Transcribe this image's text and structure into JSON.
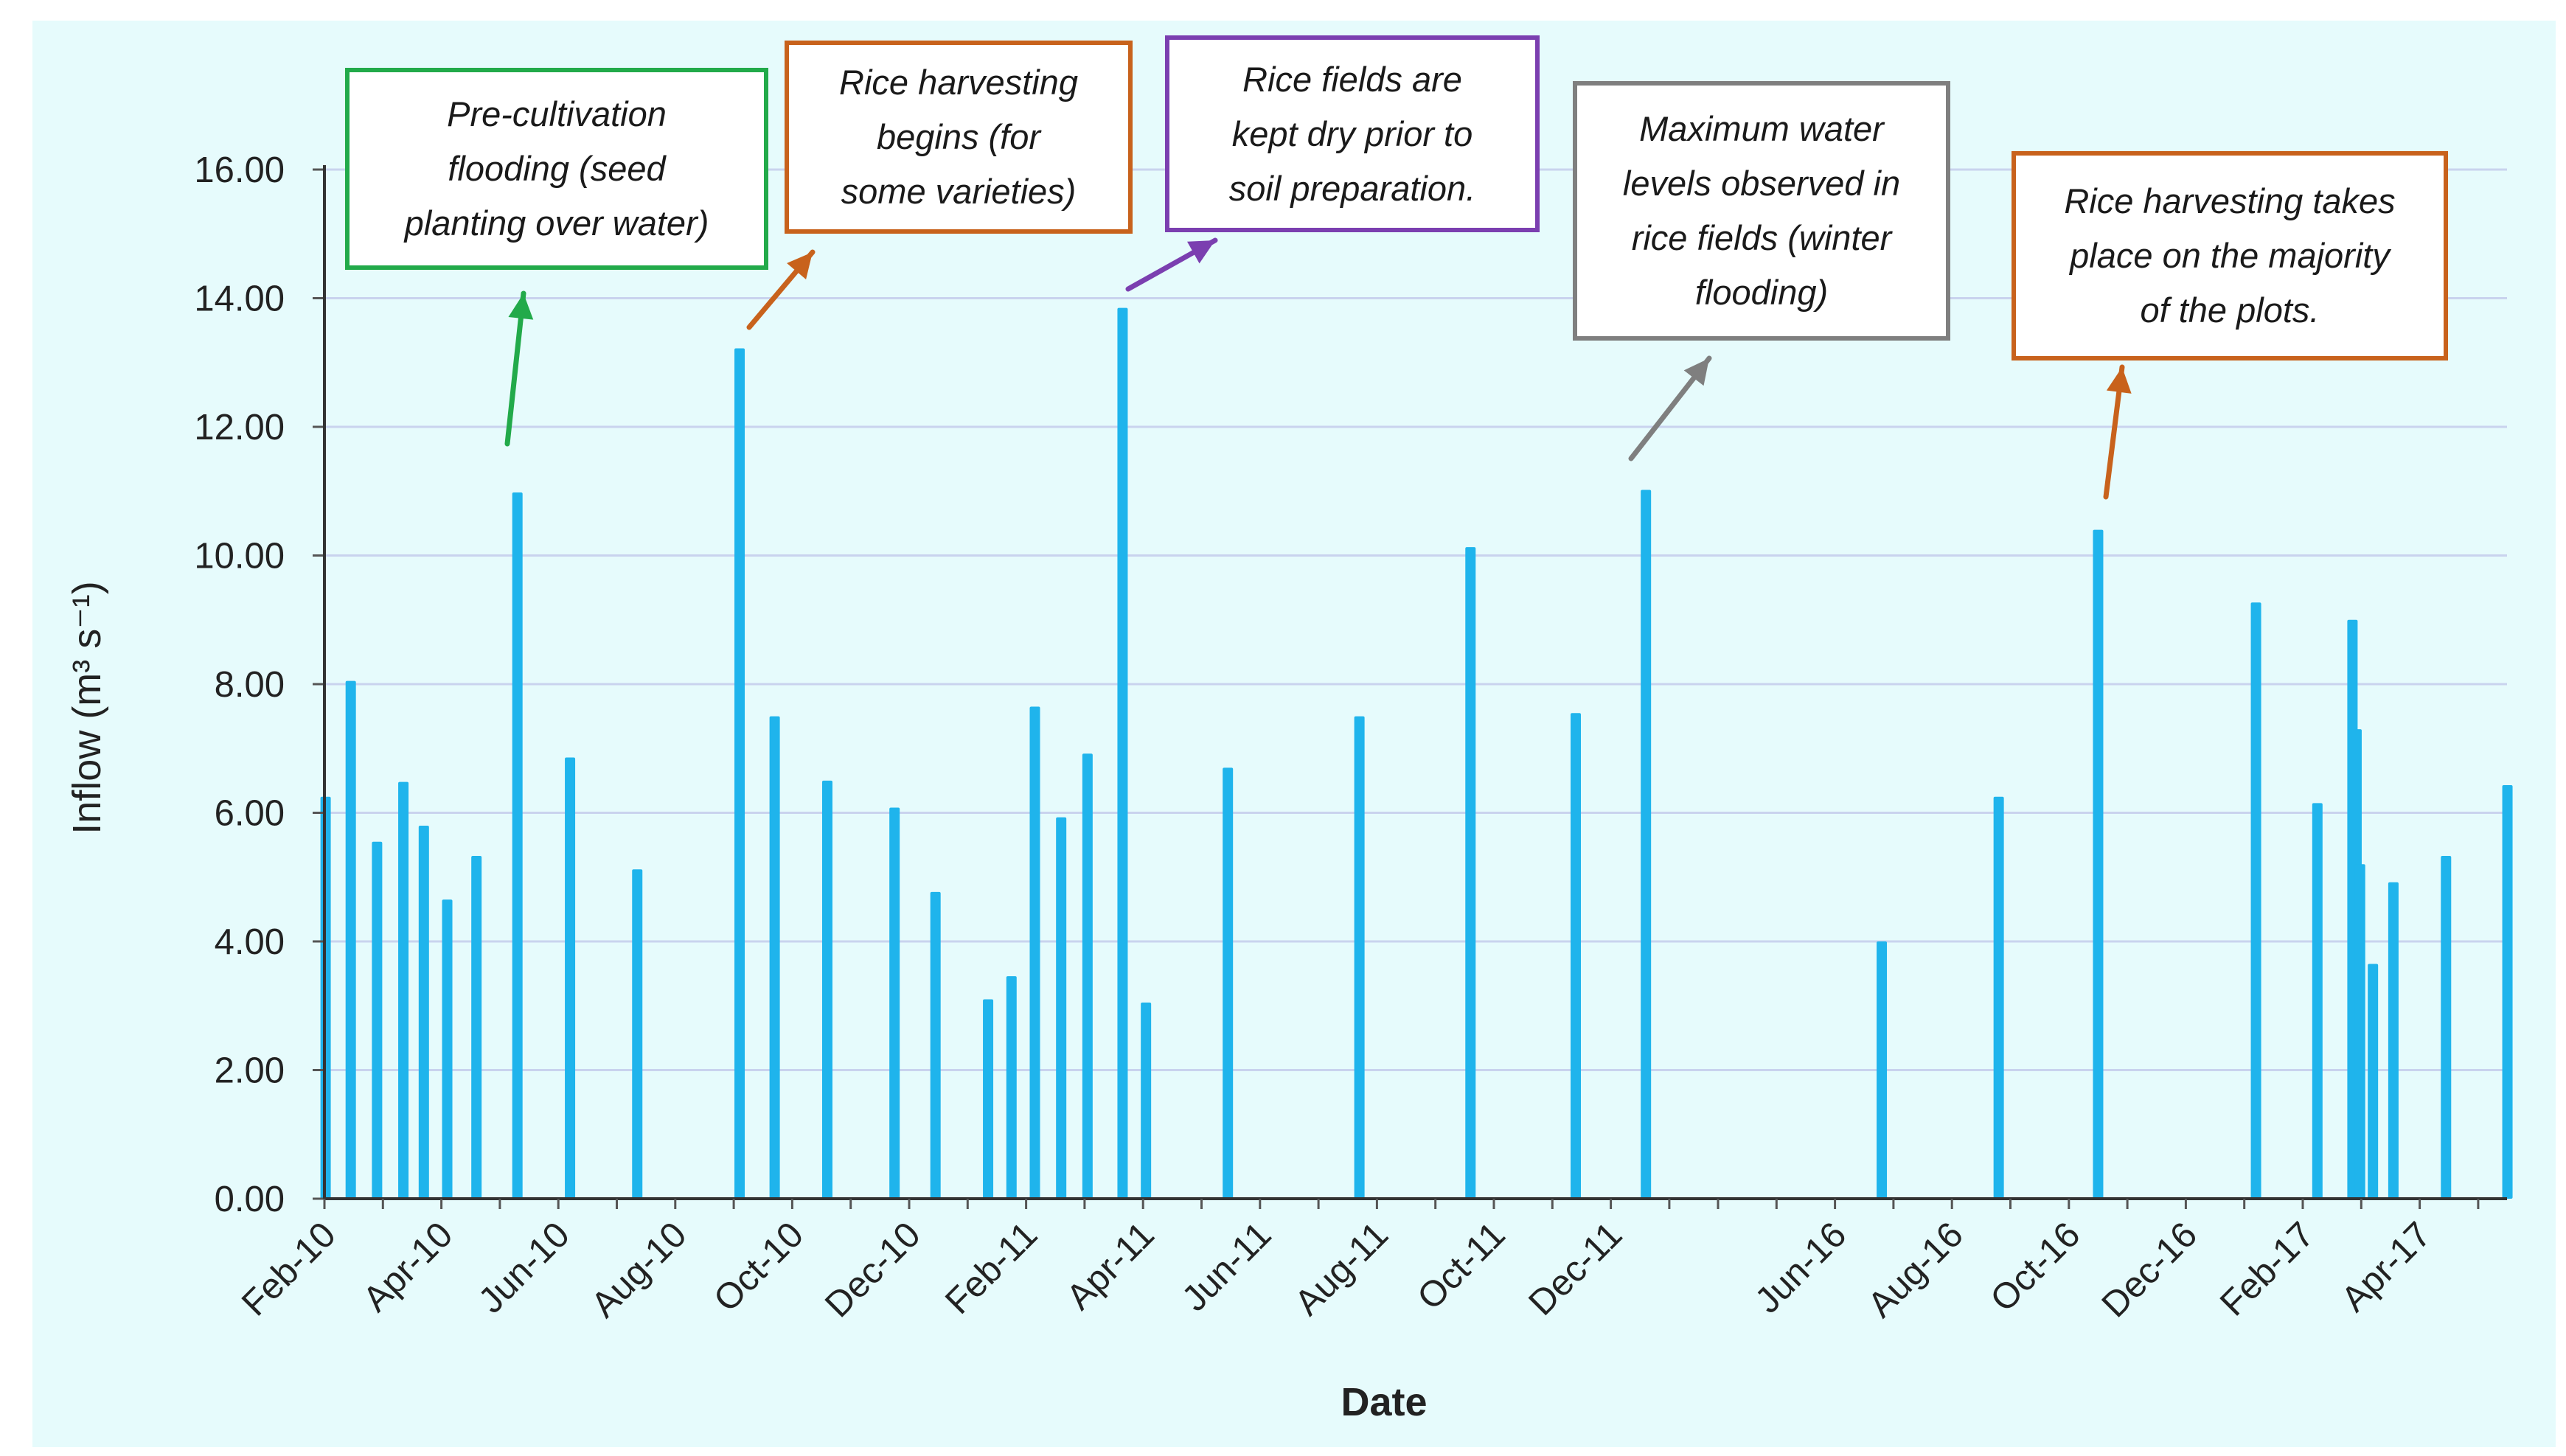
{
  "chart_data": {
    "type": "bar",
    "title": "",
    "xlabel": "Date",
    "ylabel": "Inflow (m³ s⁻¹)",
    "ylim": [
      0,
      16
    ],
    "yticks": [
      "0.00",
      "2.00",
      "4.00",
      "6.00",
      "8.00",
      "10.00",
      "12.00",
      "14.00",
      "16.00"
    ],
    "grid": true,
    "x_segments": [
      {
        "start": "2010-02",
        "end": "2012-02",
        "ticks": [
          "Feb-10",
          "Apr-10",
          "Jun-10",
          "Aug-10",
          "Oct-10",
          "Dec-10",
          "Feb-11",
          "Apr-11",
          "Jun-11",
          "Aug-11",
          "Oct-11",
          "Dec-11"
        ]
      },
      {
        "start": "2016-04",
        "end": "2017-04",
        "ticks": [
          "Jun-16",
          "Aug-16",
          "Oct-16",
          "Dec-16",
          "Feb-17",
          "Apr-17"
        ]
      }
    ],
    "series": [
      {
        "name": "Inflow",
        "color": "#1fb4ec",
        "points": [
          {
            "month": 0.02,
            "value": 6.25
          },
          {
            "month": 0.45,
            "value": 8.05
          },
          {
            "month": 0.9,
            "value": 5.55
          },
          {
            "month": 1.35,
            "value": 6.48
          },
          {
            "month": 1.7,
            "value": 5.8
          },
          {
            "month": 2.1,
            "value": 4.65
          },
          {
            "month": 2.6,
            "value": 5.33
          },
          {
            "month": 3.3,
            "value": 10.98
          },
          {
            "month": 4.2,
            "value": 6.86
          },
          {
            "month": 5.35,
            "value": 5.12
          },
          {
            "month": 7.1,
            "value": 13.22
          },
          {
            "month": 7.7,
            "value": 7.5
          },
          {
            "month": 8.6,
            "value": 6.5
          },
          {
            "month": 9.75,
            "value": 6.08
          },
          {
            "month": 10.45,
            "value": 4.77
          },
          {
            "month": 11.35,
            "value": 3.1
          },
          {
            "month": 11.75,
            "value": 3.46
          },
          {
            "month": 12.15,
            "value": 7.65
          },
          {
            "month": 12.6,
            "value": 5.93
          },
          {
            "month": 13.05,
            "value": 6.92
          },
          {
            "month": 13.65,
            "value": 13.85
          },
          {
            "month": 14.05,
            "value": 3.05
          },
          {
            "month": 15.45,
            "value": 6.7
          },
          {
            "month": 17.7,
            "value": 7.5
          },
          {
            "month": 19.6,
            "value": 10.13
          },
          {
            "month": 21.4,
            "value": 7.55
          },
          {
            "month": 22.6,
            "value": 11.02
          },
          {
            "month": 26.8,
            "value": 4.0
          },
          {
            "month": 28.8,
            "value": 6.25
          },
          {
            "month": 30.5,
            "value": 10.4
          },
          {
            "month": 33.2,
            "value": 9.27
          },
          {
            "month": 34.25,
            "value": 6.15
          },
          {
            "month": 34.85,
            "value": 9.0
          },
          {
            "month": 34.92,
            "value": 7.3
          },
          {
            "month": 34.98,
            "value": 5.2
          },
          {
            "month": 35.2,
            "value": 3.65
          },
          {
            "month": 35.55,
            "value": 4.92
          },
          {
            "month": 36.45,
            "value": 5.33
          },
          {
            "month": 37.5,
            "value": 6.43
          }
        ]
      }
    ],
    "annotations": [
      {
        "id": "pre-cultivation",
        "text_lines": [
          "Pre-cultivation",
          "flooding (seed",
          "planting over water)"
        ],
        "color": "#22aa4a"
      },
      {
        "id": "rice-harvest-begins",
        "text_lines": [
          "Rice harvesting",
          "begins (for",
          "some varieties)"
        ],
        "color": "#c8621c"
      },
      {
        "id": "fields-dry",
        "text_lines": [
          "Rice fields are",
          "kept dry prior to",
          "soil preparation."
        ],
        "color": "#7b3fb0"
      },
      {
        "id": "max-water",
        "text_lines": [
          "Maximum water",
          "levels observed in",
          "rice fields (winter",
          "flooding)"
        ],
        "color": "#7f7f7f"
      },
      {
        "id": "harvest-majority",
        "text_lines": [
          "Rice harvesting takes",
          "place on the majority",
          "of the plots."
        ],
        "color": "#c8621c"
      }
    ]
  }
}
